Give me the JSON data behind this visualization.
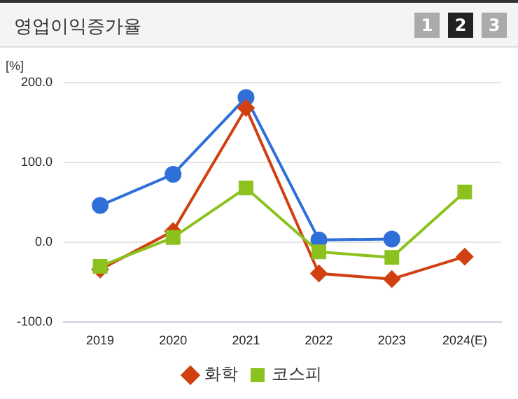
{
  "chart_data": {
    "type": "line",
    "title": "영업이익증가율",
    "ylabel": "[%]",
    "categories": [
      "2019",
      "2020",
      "2021",
      "2022",
      "2023",
      "2024(E)"
    ],
    "series": [
      {
        "color": "#2f6fd8",
        "marker": "circle",
        "values": [
          46,
          85,
          181,
          3,
          4,
          null
        ]
      },
      {
        "name": "화학",
        "color": "#d04010",
        "marker": "diamond",
        "values": [
          -34,
          14,
          168,
          -39,
          -46,
          -18
        ]
      },
      {
        "name": "코스피",
        "color": "#8cc21e",
        "marker": "square",
        "values": [
          -30,
          6,
          68,
          -12,
          -19,
          63
        ]
      }
    ],
    "ylim": [
      -100,
      200
    ],
    "yticks": [
      {
        "value": -100,
        "label": "-100.0"
      },
      {
        "value": 0,
        "label": "0.0"
      },
      {
        "value": 100,
        "label": "100.0"
      },
      {
        "value": 200,
        "label": "200.0"
      }
    ],
    "grid": "y",
    "legend": "bottom",
    "annotations": [
      "1",
      "2",
      "3"
    ]
  }
}
